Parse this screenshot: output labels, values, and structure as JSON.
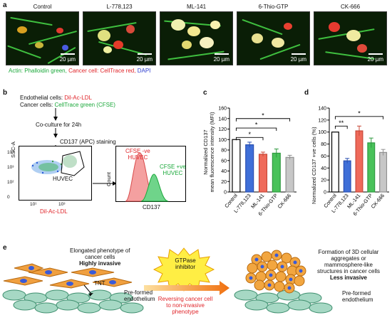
{
  "panel_a": {
    "label": "a",
    "titles": [
      "Control",
      "L-778,123",
      "ML-141",
      "6-Thio-GTP",
      "CK-666"
    ],
    "scale": "20 µm",
    "legend_actin": "Actin: Phalloidin green,",
    "legend_cancer": "Cancer cell: CellTrace red,",
    "legend_dapi": "DAPI"
  },
  "panel_b": {
    "label": "b",
    "line1_prefix": "Endothelial cells: ",
    "line1_value": "Dil-Ac-LDL",
    "line2_prefix": "Cancer cells: ",
    "line2_value": "CellTrace green (CFSE)",
    "step1": "Co-culture for 24h",
    "step2": "CD137 (APC) staining",
    "scatter_ylabel": "SSC-A",
    "scatter_xlabel": "Dil-Ac-LDL",
    "gate_label": "HUVEC",
    "y_ticks": [
      "10⁴",
      "10³",
      "10²",
      "0"
    ],
    "x_ticks": [
      "10¹",
      "10³"
    ],
    "hist_ylabel": "Count",
    "hist_xlabel": "CD137",
    "neg_label_1": "CFSE -ve",
    "neg_label_2": "HUVEC",
    "pos_label_1": "CFSE +ve",
    "pos_label_2": "HUVEC"
  },
  "panel_c": {
    "label": "c",
    "ylabel_1": "Normalized CD137",
    "ylabel_2": "mean fluorescence intensity (MFI)",
    "sig": [
      "*",
      "*",
      "*"
    ]
  },
  "panel_d": {
    "label": "d",
    "ylabel": "Normalized CD137 +ve cells (%)",
    "sig": [
      "**",
      "*"
    ]
  },
  "panel_e": {
    "label": "e",
    "left_text_1": "Elongated phenotype of",
    "left_text_2": "cancer cells",
    "left_text_3": "Highly invasive",
    "tnt": "TNT",
    "preformed_1": "Pre-formed",
    "preformed_2": "endothelium",
    "inhibitor_1": "GTPase",
    "inhibitor_2": "inhibitor",
    "reverse_1": "Reversing cancer cell",
    "reverse_2": "to non-invasive",
    "reverse_3": "phenotype",
    "right_text_1": "Formation of 3D cellular",
    "right_text_2": "aggregates or",
    "right_text_3": "mammosphere-like",
    "right_text_4": "structures in cancer cells",
    "right_text_5": "Less invasive",
    "preformed_r1": "Pre-formed",
    "preformed_r2": "endothelium"
  },
  "colors": {
    "control": "#ffffff",
    "l778": "#3f6fd8",
    "ml141": "#ef6a5a",
    "thio": "#49c25a",
    "ck666": "#c7c7c7",
    "red_text": "#e0252a",
    "green_text": "#1aa83a",
    "blue_text": "#2f3fd0"
  },
  "chart_data": [
    {
      "type": "bar",
      "panel": "c",
      "categories": [
        "Control",
        "L-778,123",
        "ML-141",
        "6-Thio-GTP",
        "CK-666"
      ],
      "values": [
        100,
        90,
        72,
        74,
        66
      ],
      "errors": [
        0,
        5,
        4,
        8,
        4
      ],
      "ylabel": "Normalized CD137 mean fluorescence intensity (MFI)",
      "ylim": [
        0,
        160
      ],
      "yticks": [
        0,
        20,
        40,
        60,
        80,
        100,
        120,
        140,
        160
      ]
    },
    {
      "type": "bar",
      "panel": "d",
      "categories": [
        "Control",
        "L-778,123",
        "ML-141",
        "6-Thio-GTP",
        "CK-666"
      ],
      "values": [
        100,
        52,
        102,
        82,
        66
      ],
      "errors": [
        0,
        4,
        8,
        8,
        5
      ],
      "ylabel": "Normalized CD137 +ve cells (%)",
      "ylim": [
        0,
        140
      ],
      "yticks": [
        0,
        20,
        40,
        60,
        80,
        100,
        120,
        140
      ]
    }
  ]
}
